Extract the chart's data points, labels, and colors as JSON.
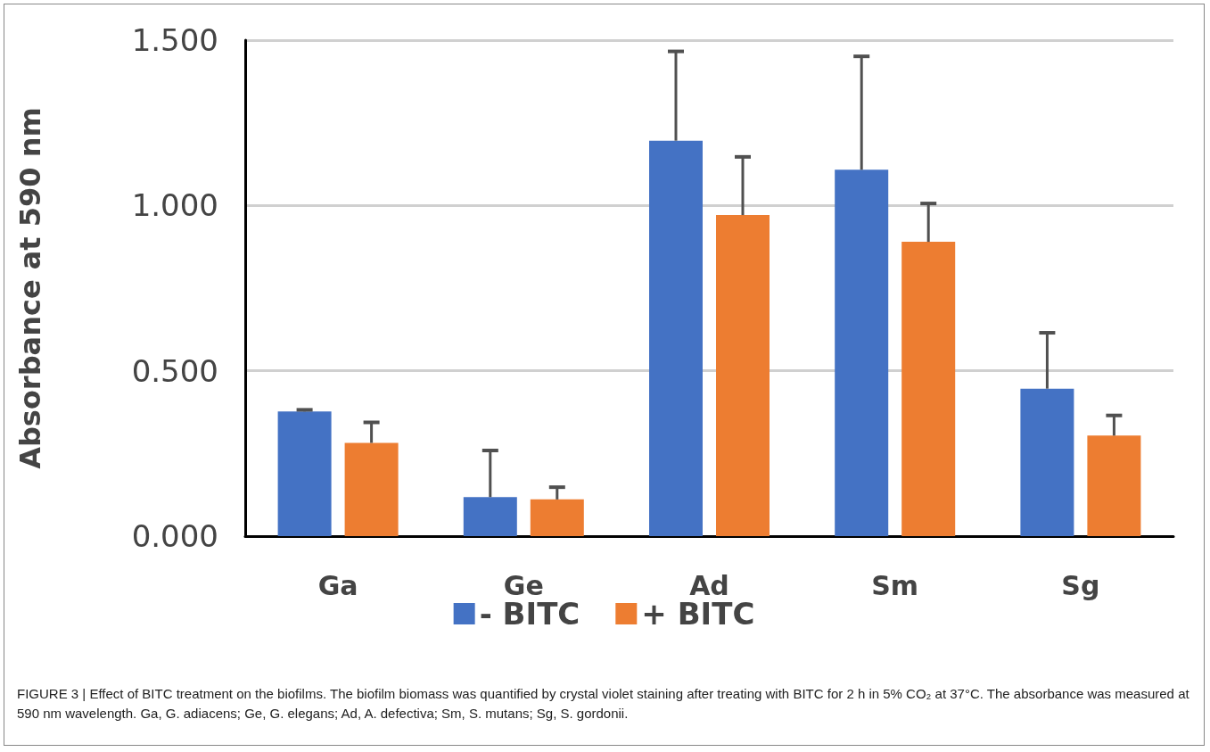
{
  "chart_data": {
    "type": "bar",
    "ylabel": "Absorbance at 590 nm",
    "categories": [
      "Ga",
      "Ge",
      "Ad",
      "Sm",
      "Sg"
    ],
    "series": [
      {
        "name": "- BITC",
        "color": "#4472c4",
        "values": [
          0.377,
          0.118,
          1.196,
          1.108,
          0.446
        ],
        "errors": [
          [
            0.377,
            0.382
          ],
          [
            0.118,
            0.259
          ],
          [
            1.196,
            1.466
          ],
          [
            1.108,
            1.451
          ],
          [
            0.446,
            0.615
          ]
        ]
      },
      {
        "name": "+ BITC",
        "color": "#ed7d31",
        "values": [
          0.282,
          0.111,
          0.971,
          0.89,
          0.304
        ],
        "errors": [
          [
            0.282,
            0.344
          ],
          [
            0.111,
            0.148
          ],
          [
            0.971,
            1.147
          ],
          [
            0.89,
            1.006
          ],
          [
            0.304,
            0.365
          ]
        ]
      }
    ],
    "ylim": [
      0,
      1.5
    ],
    "yticks": [
      {
        "value": 0,
        "label": "0.000"
      },
      {
        "value": 0.5,
        "label": "0.500"
      },
      {
        "value": 1,
        "label": "1.000"
      },
      {
        "value": 1.5,
        "label": "1.500"
      }
    ],
    "grid": "y",
    "legend": "bottom",
    "annotations": [
      "FIGURE 3 | Effect of BITC treatment on the biofilms. The biofilm biomass was quantified by crystal violet staining after treating with BITC for 2 h in 5% CO₂ at 37°C. The absorbance was measured at 590 nm wavelength. Ga, G. adiacens; Ge, G. elegans; Ad, A. defectiva; Sm, S. mutans; Sg, S. gordonii."
    ]
  }
}
